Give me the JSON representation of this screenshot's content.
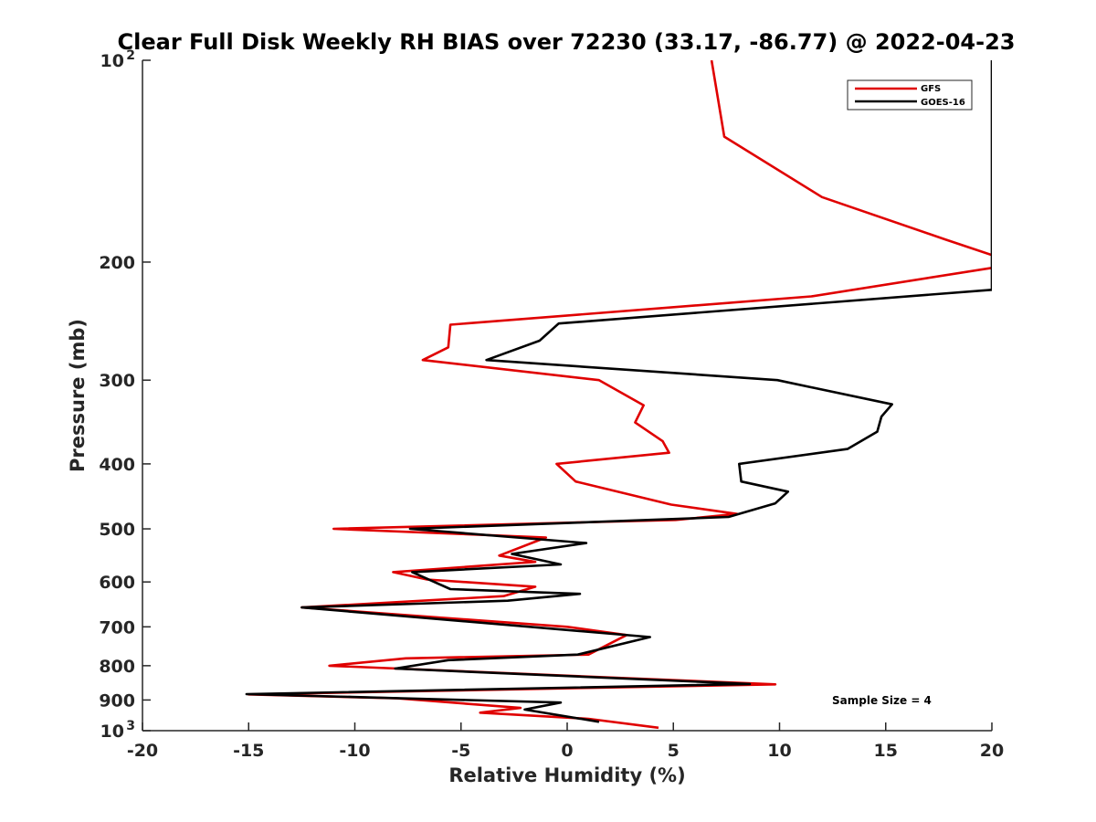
{
  "chart_data": {
    "type": "line",
    "title": "Clear Full Disk Weekly RH BIAS over 72230 (33.17, -86.77) @ 2022-04-23",
    "xlabel": "Relative Humidity (%)",
    "ylabel": "Pressure (mb)",
    "xlim": [
      -20,
      20
    ],
    "ylim": [
      100,
      1000
    ],
    "yscale": "log",
    "y_reversed": true,
    "grid": false,
    "legend_position": "top-right",
    "x_ticks": [
      "-20",
      "-15",
      "-10",
      "-5",
      "0",
      "5",
      "10",
      "15",
      "20"
    ],
    "y_ticks": [
      {
        "value": 100,
        "base": "10",
        "exp": "2"
      },
      {
        "value": 200,
        "label": "200"
      },
      {
        "value": 300,
        "label": "300"
      },
      {
        "value": 400,
        "label": "400"
      },
      {
        "value": 500,
        "label": "500"
      },
      {
        "value": 600,
        "label": "600"
      },
      {
        "value": 700,
        "label": "700"
      },
      {
        "value": 800,
        "label": "800"
      },
      {
        "value": 900,
        "label": "900"
      },
      {
        "value": 1000,
        "base": "10",
        "exp": "3"
      }
    ],
    "series": [
      {
        "name": "GFS",
        "color": "#e00000",
        "points": [
          [
            6.8,
            100
          ],
          [
            7.4,
            130
          ],
          [
            12.0,
            160
          ],
          [
            17.8,
            185
          ],
          [
            21.0,
            200
          ],
          [
            20.0,
            204
          ],
          [
            11.5,
            225
          ],
          [
            -5.5,
            248
          ],
          [
            -5.6,
            268
          ],
          [
            -6.8,
            280
          ],
          [
            1.5,
            300
          ],
          [
            3.6,
            327
          ],
          [
            3.2,
            347
          ],
          [
            4.5,
            370
          ],
          [
            4.8,
            385
          ],
          [
            -0.5,
            400
          ],
          [
            0.4,
            425
          ],
          [
            4.9,
            460
          ],
          [
            8.0,
            475
          ],
          [
            5.1,
            485
          ],
          [
            -11.0,
            500
          ],
          [
            -1.0,
            515
          ],
          [
            -3.2,
            548
          ],
          [
            -1.5,
            560
          ],
          [
            -8.2,
            580
          ],
          [
            -6.6,
            595
          ],
          [
            -1.5,
            610
          ],
          [
            -3.0,
            630
          ],
          [
            -12.5,
            655
          ],
          [
            0.0,
            700
          ],
          [
            2.8,
            720
          ],
          [
            1.0,
            770
          ],
          [
            -7.6,
            780
          ],
          [
            -11.2,
            800
          ],
          [
            9.8,
            853
          ],
          [
            -15.0,
            883
          ],
          [
            -8.0,
            895
          ],
          [
            -2.2,
            925
          ],
          [
            -4.1,
            940
          ],
          [
            1.0,
            960
          ],
          [
            4.3,
            990
          ]
        ]
      },
      {
        "name": "GOES-16",
        "color": "#000000",
        "points": [
          [
            20.3,
            95
          ],
          [
            20.0,
            99
          ],
          [
            20.0,
            220
          ],
          [
            -0.4,
            247
          ],
          [
            -1.3,
            262
          ],
          [
            -3.8,
            280
          ],
          [
            9.9,
            300
          ],
          [
            15.3,
            326
          ],
          [
            14.8,
            340
          ],
          [
            14.6,
            358
          ],
          [
            13.2,
            380
          ],
          [
            8.1,
            400
          ],
          [
            8.2,
            425
          ],
          [
            10.4,
            440
          ],
          [
            9.8,
            458
          ],
          [
            7.6,
            480
          ],
          [
            -7.4,
            500
          ],
          [
            0.9,
            525
          ],
          [
            -2.6,
            545
          ],
          [
            -0.3,
            565
          ],
          [
            -7.3,
            580
          ],
          [
            -5.5,
            615
          ],
          [
            0.6,
            625
          ],
          [
            -2.8,
            640
          ],
          [
            -12.5,
            655
          ],
          [
            3.9,
            725
          ],
          [
            0.5,
            770
          ],
          [
            -5.6,
            785
          ],
          [
            -8.1,
            808
          ],
          [
            8.6,
            852
          ],
          [
            -15.1,
            882
          ],
          [
            -0.3,
            908
          ],
          [
            -2.0,
            930
          ],
          [
            1.5,
            970
          ]
        ]
      }
    ],
    "annotation": "Sample Size = 4"
  }
}
